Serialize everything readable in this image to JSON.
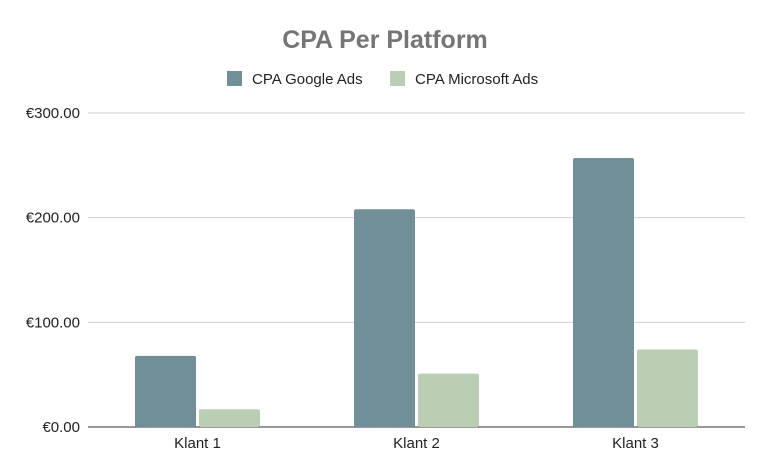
{
  "chart_data": {
    "type": "bar",
    "title": "CPA Per Platform",
    "xlabel": "",
    "ylabel": "",
    "categories": [
      "Klant 1",
      "Klant 2",
      "Klant 3"
    ],
    "series": [
      {
        "name": "CPA Google Ads",
        "color": "#718f98",
        "values": [
          68,
          208,
          257
        ]
      },
      {
        "name": "CPA Microsoft Ads",
        "color": "#b9ceb2",
        "values": [
          17,
          51,
          74
        ]
      }
    ],
    "ylim": [
      0,
      300
    ],
    "yticks": [
      {
        "value": 0,
        "label": "€0.00"
      },
      {
        "value": 100,
        "label": "€100.00"
      },
      {
        "value": 200,
        "label": "€200.00"
      },
      {
        "value": 300,
        "label": "€300.00"
      }
    ],
    "grid": true,
    "legend_position": "top"
  }
}
